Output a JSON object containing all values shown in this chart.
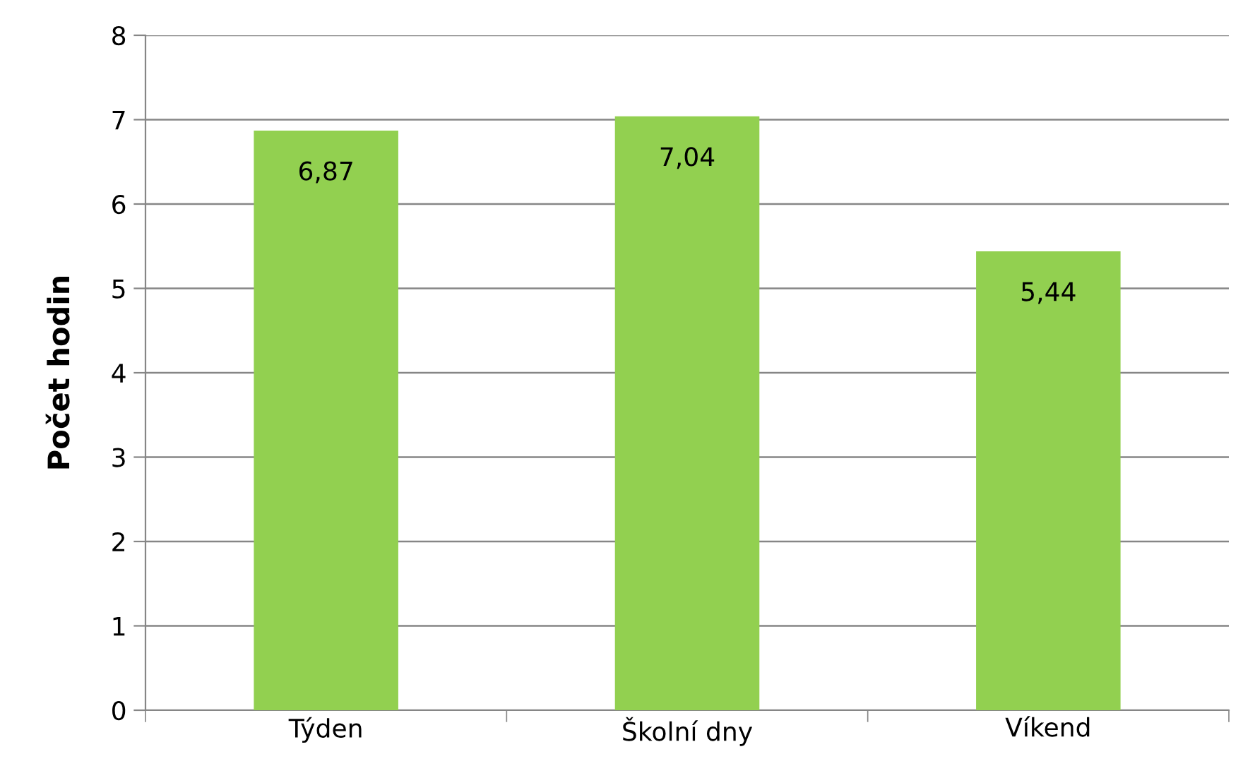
{
  "chart_data": {
    "type": "bar",
    "ylabel": "Počet hodin",
    "categories": [
      "Týden",
      "Školní dny",
      "Víkend"
    ],
    "values": [
      6.87,
      7.04,
      5.44
    ],
    "value_labels": [
      "6,87",
      "7,04",
      "5,44"
    ],
    "color": "#92d050",
    "ylim": [
      0,
      8
    ],
    "yticks": [
      0,
      1,
      2,
      3,
      4,
      5,
      6,
      7,
      8
    ],
    "grid": "y"
  }
}
